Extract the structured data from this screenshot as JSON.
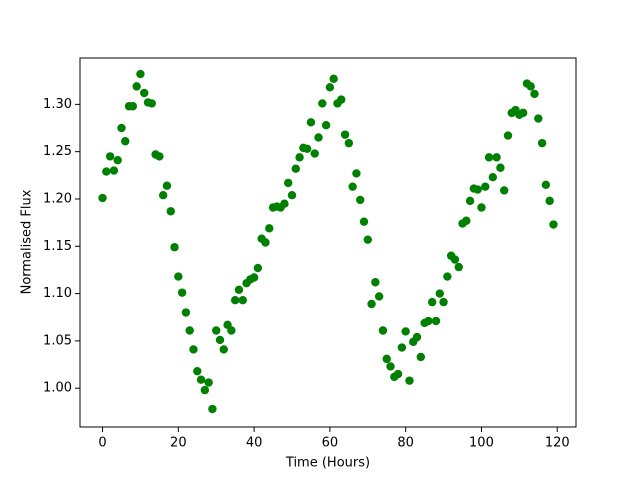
{
  "chart_data": {
    "type": "scatter",
    "xlabel": "Time (Hours)",
    "ylabel": "Normalised Flux",
    "x": [
      0,
      1,
      2,
      3,
      4,
      5,
      6,
      7,
      8,
      9,
      10,
      11,
      12,
      13,
      14,
      15,
      16,
      17,
      18,
      19,
      20,
      21,
      22,
      23,
      24,
      25,
      26,
      27,
      28,
      29,
      30,
      31,
      32,
      33,
      34,
      35,
      36,
      37,
      38,
      39,
      40,
      41,
      42,
      43,
      44,
      45,
      46,
      47,
      48,
      49,
      50,
      51,
      52,
      53,
      54,
      55,
      56,
      57,
      58,
      59,
      60,
      61,
      62,
      63,
      64,
      65,
      66,
      67,
      68,
      69,
      70,
      71,
      72,
      73,
      74,
      75,
      76,
      77,
      78,
      79,
      80,
      81,
      82,
      83,
      84,
      85,
      86,
      87,
      88,
      89,
      90,
      91,
      92,
      93,
      94,
      95,
      96,
      97,
      98,
      99,
      100,
      101,
      102,
      103,
      104,
      105,
      106,
      107,
      108,
      109,
      110,
      111,
      112,
      113,
      114,
      115,
      116,
      117,
      118,
      119
    ],
    "values": [
      1.201,
      1.229,
      1.245,
      1.23,
      1.241,
      1.275,
      1.261,
      1.298,
      1.298,
      1.319,
      1.332,
      1.312,
      1.302,
      1.301,
      1.247,
      1.245,
      1.204,
      1.214,
      1.187,
      1.149,
      1.118,
      1.101,
      1.08,
      1.061,
      1.041,
      1.018,
      1.009,
      0.998,
      1.006,
      0.978,
      1.061,
      1.051,
      1.041,
      1.067,
      1.061,
      1.093,
      1.104,
      1.093,
      1.111,
      1.115,
      1.117,
      1.127,
      1.158,
      1.154,
      1.169,
      1.191,
      1.192,
      1.191,
      1.195,
      1.217,
      1.204,
      1.232,
      1.244,
      1.254,
      1.253,
      1.281,
      1.248,
      1.265,
      1.301,
      1.278,
      1.318,
      1.327,
      1.301,
      1.305,
      1.268,
      1.259,
      1.213,
      1.227,
      1.199,
      1.176,
      1.157,
      1.089,
      1.112,
      1.097,
      1.061,
      1.031,
      1.023,
      1.012,
      1.015,
      1.043,
      1.06,
      1.008,
      1.049,
      1.054,
      1.033,
      1.069,
      1.071,
      1.091,
      1.071,
      1.1,
      1.091,
      1.118,
      1.14,
      1.136,
      1.128,
      1.174,
      1.177,
      1.198,
      1.211,
      1.21,
      1.191,
      1.213,
      1.244,
      1.223,
      1.244,
      1.233,
      1.209,
      1.267,
      1.291,
      1.294,
      1.289,
      1.291,
      1.322,
      1.319,
      1.311,
      1.285,
      1.259,
      1.215,
      1.198,
      1.173
    ],
    "color": "green",
    "xlim": [
      -5.95,
      124.95
    ],
    "ylim": [
      0.959,
      1.349
    ],
    "xticks": [
      0,
      20,
      40,
      60,
      80,
      100,
      120
    ],
    "yticks": [
      {
        "value": 1,
        "label": "1.00"
      },
      1.05,
      {
        "value": 1.1,
        "label": "1.10"
      },
      1.15,
      {
        "value": 1.2,
        "label": "1.20"
      },
      1.25,
      {
        "value": 1.3,
        "label": "1.30"
      }
    ]
  }
}
